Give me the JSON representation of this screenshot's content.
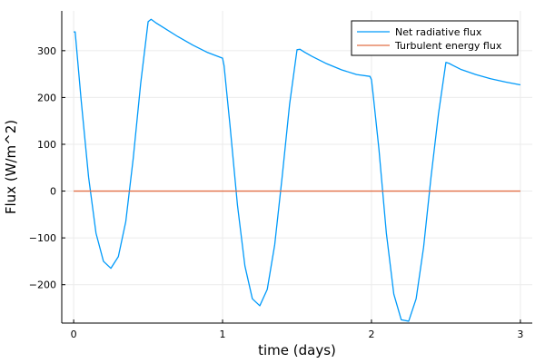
{
  "chart_data": {
    "type": "line",
    "xlabel": "time (days)",
    "ylabel": "Flux (W/m^2)",
    "xlim": [
      -0.08,
      3.08
    ],
    "ylim": [
      -282,
      385
    ],
    "xticks": [
      0,
      1,
      2,
      3
    ],
    "yticks": [
      -200,
      -100,
      0,
      100,
      200,
      300
    ],
    "grid": true,
    "legend_position": "top-right",
    "colors": {
      "net_radiative": "#009AFA",
      "turbulent": "#E26F46",
      "grid": "#EBEBEB",
      "axis": "#000000"
    },
    "series": [
      {
        "name": "Net radiative flux",
        "x": [
          0,
          0.01,
          0.05,
          0.1,
          0.15,
          0.2,
          0.25,
          0.3,
          0.35,
          0.4,
          0.45,
          0.5,
          0.52,
          0.55,
          0.6,
          0.7,
          0.8,
          0.9,
          1.0,
          1.01,
          1.05,
          1.1,
          1.15,
          1.2,
          1.25,
          1.3,
          1.35,
          1.4,
          1.45,
          1.5,
          1.52,
          1.55,
          1.6,
          1.7,
          1.8,
          1.9,
          1.99,
          2.0,
          2.01,
          2.05,
          2.1,
          2.15,
          2.2,
          2.25,
          2.3,
          2.35,
          2.4,
          2.45,
          2.5,
          2.52,
          2.55,
          2.6,
          2.7,
          2.8,
          2.9,
          3.0
        ],
        "y": [
          340,
          340,
          195,
          30,
          -90,
          -150,
          -165,
          -140,
          -65,
          70,
          230,
          362,
          367,
          360,
          350,
          330,
          312,
          296,
          284,
          268,
          140,
          -30,
          -160,
          -230,
          -245,
          -210,
          -115,
          30,
          185,
          302,
          303,
          297,
          288,
          272,
          259,
          249,
          245,
          238,
          210,
          90,
          -90,
          -220,
          -275,
          -278,
          -230,
          -120,
          30,
          165,
          275,
          273,
          268,
          260,
          249,
          240,
          233,
          227
        ]
      },
      {
        "name": "Turbulent energy flux",
        "x": [
          0,
          3
        ],
        "y": [
          0,
          0
        ]
      }
    ]
  }
}
